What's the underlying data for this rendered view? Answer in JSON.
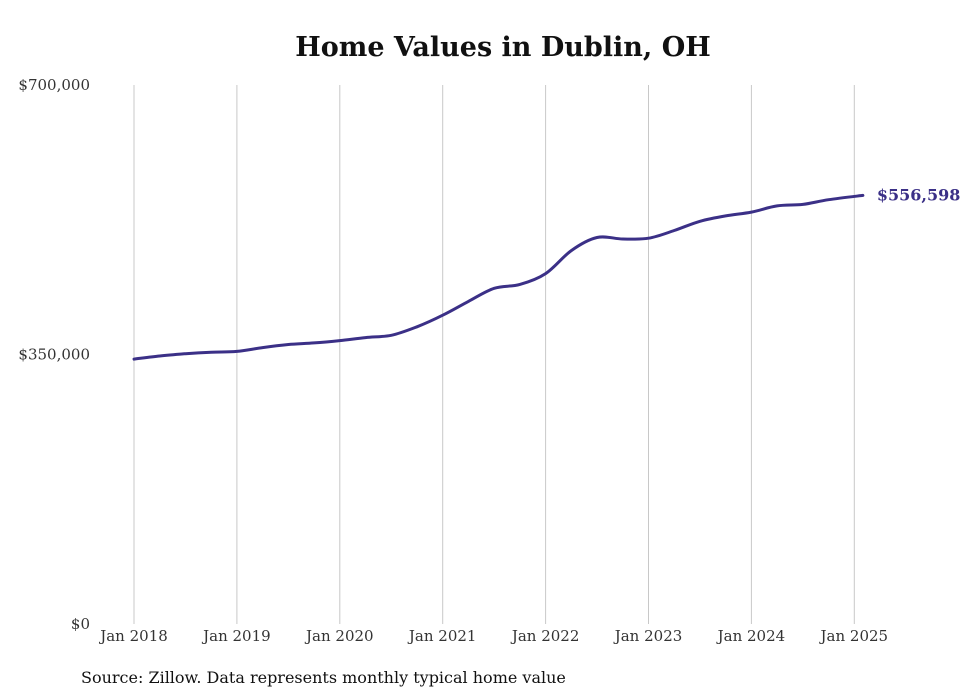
{
  "chart_data": {
    "type": "line",
    "title": "Home Values in Dublin, OH",
    "xlabel": "",
    "ylabel": "",
    "x_ticks": [
      "Jan 2018",
      "Jan 2019",
      "Jan 2020",
      "Jan 2021",
      "Jan 2022",
      "Jan 2023",
      "Jan 2024",
      "Jan 2025"
    ],
    "y_ticks": [
      {
        "value": 0,
        "label": "$0"
      },
      {
        "value": 350000,
        "label": "$350,000"
      },
      {
        "value": 700000,
        "label": "$700,000"
      }
    ],
    "ylim": [
      0,
      700000
    ],
    "xlim": [
      "2018-01",
      "2025-02"
    ],
    "grid": "vertical",
    "series": [
      {
        "color": "#3b3087",
        "end_label": "$556,598",
        "points": [
          [
            "2018-01",
            344000
          ],
          [
            "2018-04",
            348000
          ],
          [
            "2018-07",
            351000
          ],
          [
            "2018-10",
            353000
          ],
          [
            "2019-01",
            354000
          ],
          [
            "2019-04",
            359000
          ],
          [
            "2019-07",
            363000
          ],
          [
            "2019-10",
            365000
          ],
          [
            "2020-01",
            368000
          ],
          [
            "2020-04",
            372000
          ],
          [
            "2020-07",
            375000
          ],
          [
            "2020-10",
            386000
          ],
          [
            "2021-01",
            401000
          ],
          [
            "2021-04",
            419000
          ],
          [
            "2021-07",
            436000
          ],
          [
            "2021-10",
            441000
          ],
          [
            "2022-01",
            455000
          ],
          [
            "2022-04",
            485000
          ],
          [
            "2022-07",
            502000
          ],
          [
            "2022-10",
            500000
          ],
          [
            "2023-01",
            501000
          ],
          [
            "2023-04",
            511000
          ],
          [
            "2023-07",
            523000
          ],
          [
            "2023-10",
            530000
          ],
          [
            "2024-01",
            535000
          ],
          [
            "2024-04",
            543000
          ],
          [
            "2024-07",
            545000
          ],
          [
            "2024-10",
            551000
          ],
          [
            "2025-02",
            556598
          ]
        ]
      }
    ]
  },
  "source": "Source: Zillow. Data represents monthly typical home value"
}
